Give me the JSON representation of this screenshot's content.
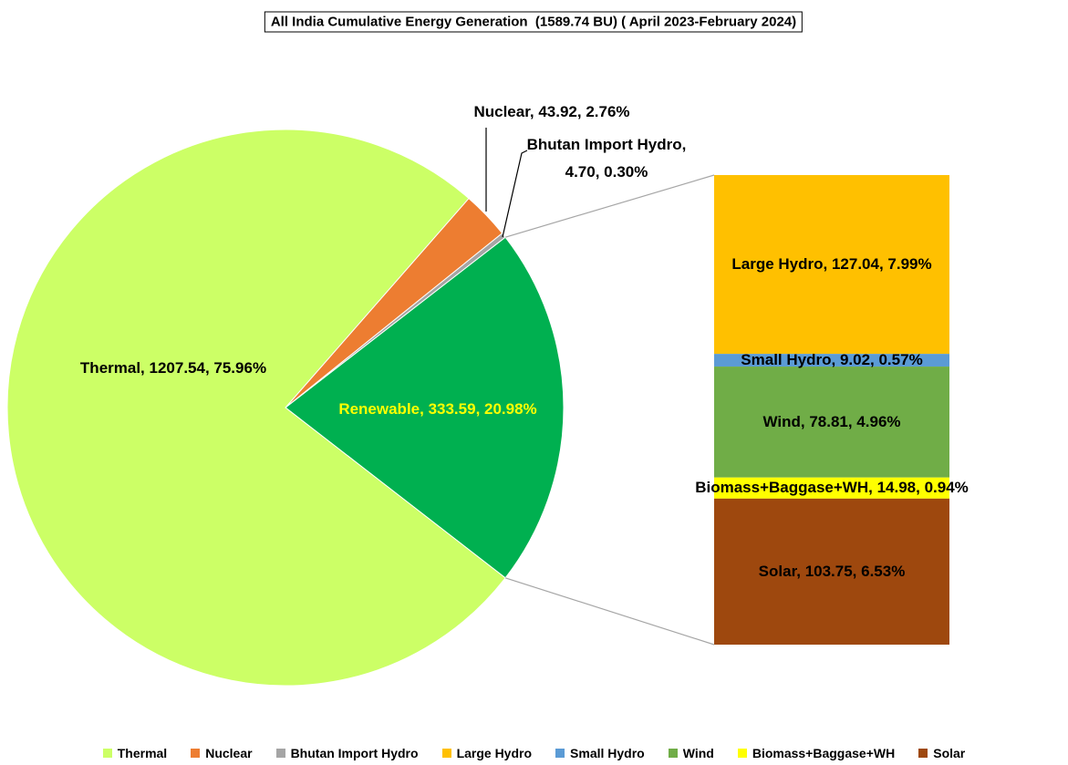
{
  "chart_data": {
    "type": "pie-of-bar",
    "title": "All India Cumulative Energy Generation  (1589.74 BU) ( April 2023-February 2024)",
    "categories": [
      "Thermal",
      "Nuclear",
      "Bhutan Import Hydro",
      "Renewable"
    ],
    "values": [
      1207.54,
      43.92,
      4.7,
      333.59
    ],
    "value_labels": [
      "Thermal, 1207.54, 75.96%",
      "Nuclear, 43.92, 2.76%",
      "Bhutan Import Hydro, 4.70, 0.30%",
      "Renewable, 333.59, 20.98%"
    ],
    "colors": [
      "#ccff66",
      "#ed7d31",
      "#a5a5a5",
      "#00b050"
    ],
    "breakdown": {
      "categories": [
        "Large Hydro",
        "Small Hydro",
        "Wind",
        "Biomass+Baggase+WH",
        "Solar"
      ],
      "values": [
        127.04,
        9.02,
        78.81,
        14.98,
        103.75
      ],
      "value_labels": [
        "Large Hydro, 127.04, 7.99%",
        "Small Hydro, 9.02, 0.57%",
        "Wind, 78.81, 4.96%",
        "Biomass+Baggase+WH, 14.98, 0.94%",
        "Solar, 103.75, 6.53%"
      ],
      "colors": [
        "#ffc000",
        "#5b9bd5",
        "#70ad47",
        "#ffff00",
        "#9e480e"
      ]
    },
    "legend": "bottom"
  }
}
